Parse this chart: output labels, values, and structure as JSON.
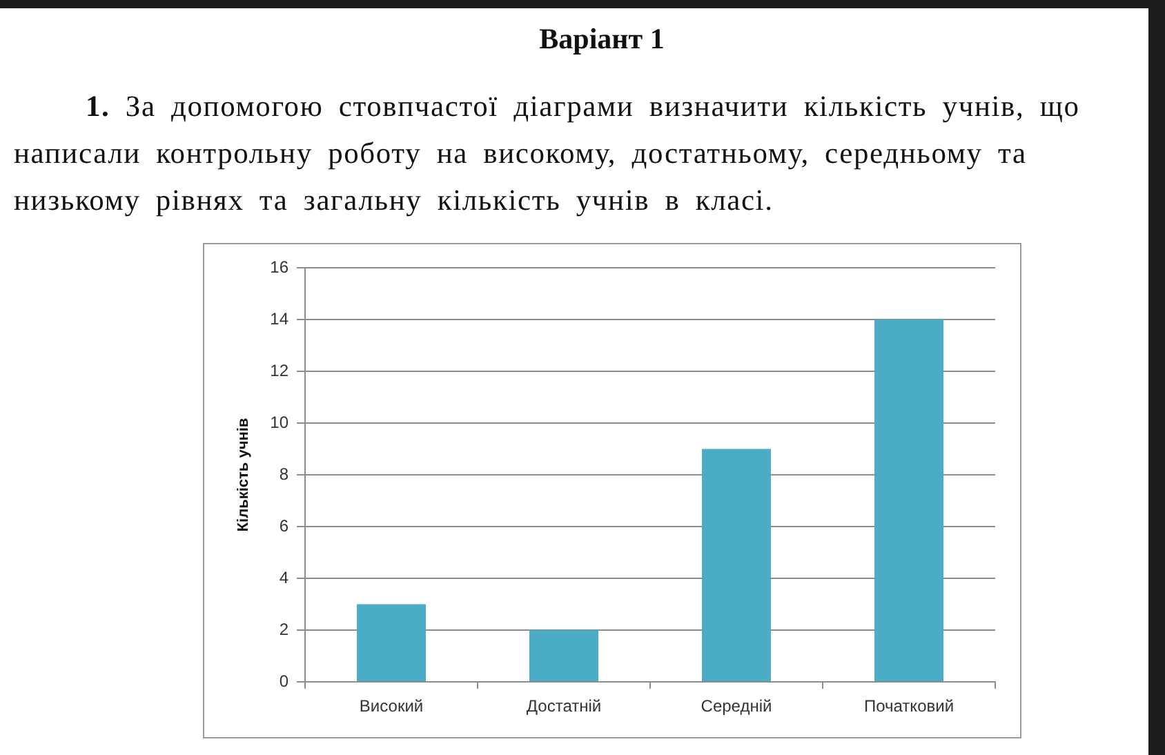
{
  "chart_data": {
    "type": "bar",
    "title": "Варіант 1",
    "subtitle": "1. За допомогою стовпчастої діаграми визначити кількість учнів, що написали контрольну роботу на високому, достатньому, середньому та низькому рівнях та загальну кількість учнів в класі.",
    "ylabel": "Кількість учнів",
    "categories": [
      "Високий",
      "Достатній",
      "Середній",
      "Початковий"
    ],
    "values": [
      3,
      2,
      9,
      14
    ],
    "color": "#4bacc6",
    "ylim": [
      0,
      16
    ],
    "yticks": [
      0,
      2,
      4,
      6,
      8,
      10,
      12,
      14,
      16
    ],
    "grid": "y"
  }
}
